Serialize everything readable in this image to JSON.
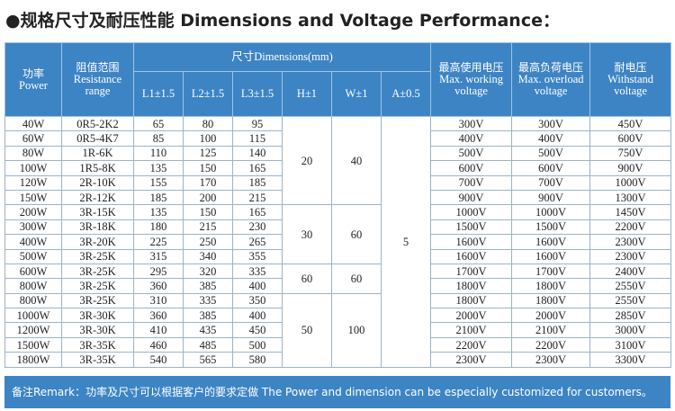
{
  "title": "●规格尺寸及耐压性能 Dimensions and Voltage Performance：",
  "header": {
    "power": {
      "zh": "功率",
      "en": "Power"
    },
    "resistance": {
      "zh": "阻值范围",
      "en": "Resistance range"
    },
    "dimensions": "尺寸Dimensions(mm)",
    "sub": [
      "L1±1.5",
      "L2±1.5",
      "L3±1.5",
      "H±1",
      "W±1",
      "A±0.5"
    ],
    "max_working": {
      "zh": "最高使用电压",
      "en": "Max. working voltage"
    },
    "max_overload": {
      "zh": "最高负荷电压",
      "en": "Max. overload voltage"
    },
    "withstand": {
      "zh": "耐电压",
      "en": "Withstand voltage"
    }
  },
  "A": "5",
  "groups": [
    {
      "H": "20",
      "W": "40",
      "rows": [
        [
          "40W",
          "0R5-2K2",
          "65",
          "80",
          "95",
          "300V",
          "300V",
          "450V"
        ],
        [
          "60W",
          "0R5-4K7",
          "85",
          "100",
          "115",
          "400V",
          "400V",
          "600V"
        ],
        [
          "80W",
          "1R-6K",
          "110",
          "125",
          "140",
          "500V",
          "500V",
          "750V"
        ],
        [
          "100W",
          "1R5-8K",
          "135",
          "150",
          "165",
          "600V",
          "600V",
          "900V"
        ],
        [
          "120W",
          "2R-10K",
          "155",
          "170",
          "185",
          "700V",
          "700V",
          "1000V"
        ],
        [
          "150W",
          "2R-12K",
          "185",
          "200",
          "215",
          "900V",
          "900V",
          "1300V"
        ]
      ]
    },
    {
      "H": "30",
      "W": "60",
      "rows": [
        [
          "200W",
          "3R-15K",
          "135",
          "150",
          "165",
          "1000V",
          "1000V",
          "1450V"
        ],
        [
          "300W",
          "3R-18K",
          "180",
          "215",
          "230",
          "1500V",
          "1500V",
          "2200V"
        ],
        [
          "400W",
          "3R-20K",
          "225",
          "250",
          "265",
          "1600V",
          "1600V",
          "2300V"
        ],
        [
          "500W",
          "3R-25K",
          "315",
          "340",
          "355",
          "1600V",
          "1600V",
          "2300V"
        ]
      ]
    },
    {
      "H": "60",
      "W": "60",
      "rows": [
        [
          "600W",
          "3R-25K",
          "295",
          "320",
          "335",
          "1700V",
          "1700V",
          "2400V"
        ],
        [
          "800W",
          "3R-25K",
          "360",
          "385",
          "400",
          "1800V",
          "1800V",
          "2550V"
        ]
      ]
    },
    {
      "H": "50",
      "W": "100",
      "rows": [
        [
          "800W",
          "3R-25K",
          "310",
          "335",
          "350",
          "1800V",
          "1800V",
          "2550V"
        ],
        [
          "1000W",
          "3R-30K",
          "360",
          "385",
          "400",
          "2000V",
          "2000V",
          "2850V"
        ],
        [
          "1200W",
          "3R-30K",
          "410",
          "435",
          "450",
          "2100V",
          "2100V",
          "3000V"
        ],
        [
          "1500W",
          "3R-35K",
          "460",
          "485",
          "500",
          "2200V",
          "2200V",
          "3100V"
        ],
        [
          "1800W",
          "3R-35K",
          "540",
          "565",
          "580",
          "2300V",
          "2300V",
          "3300V"
        ]
      ]
    }
  ],
  "footer": "备注Remark：功率及尺寸可以根据客户的要求定做 The Power and dimension can be especially customized for customers。"
}
